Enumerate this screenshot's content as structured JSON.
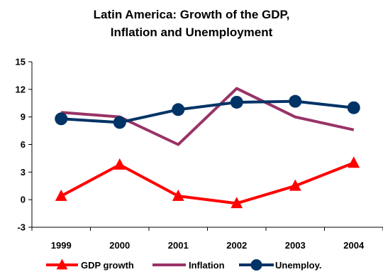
{
  "chart_data": {
    "type": "line",
    "title_line1": "Latin America: Growth of the GDP,",
    "title_line2": "Inflation and Unemployment",
    "categories": [
      "1999",
      "2000",
      "2001",
      "2002",
      "2003",
      "2004"
    ],
    "yticks": [
      "15",
      "12",
      "9",
      "6",
      "3",
      "0",
      "-3"
    ],
    "ylim": [
      -3,
      15
    ],
    "series": [
      {
        "name": "GDP growth",
        "values": [
          0.4,
          3.8,
          0.4,
          -0.4,
          1.5,
          4.0
        ],
        "color": "#ff0000",
        "marker": "triangle"
      },
      {
        "name": "Inflation",
        "values": [
          9.5,
          9.0,
          6.0,
          12.1,
          9.0,
          7.6
        ],
        "color": "#993366",
        "marker": "none"
      },
      {
        "name": "Unemploy.",
        "values": [
          8.8,
          8.4,
          9.8,
          10.6,
          10.7,
          10.0
        ],
        "color": "#003366",
        "marker": "circle"
      }
    ],
    "legend_position": "bottom",
    "grid": false
  }
}
